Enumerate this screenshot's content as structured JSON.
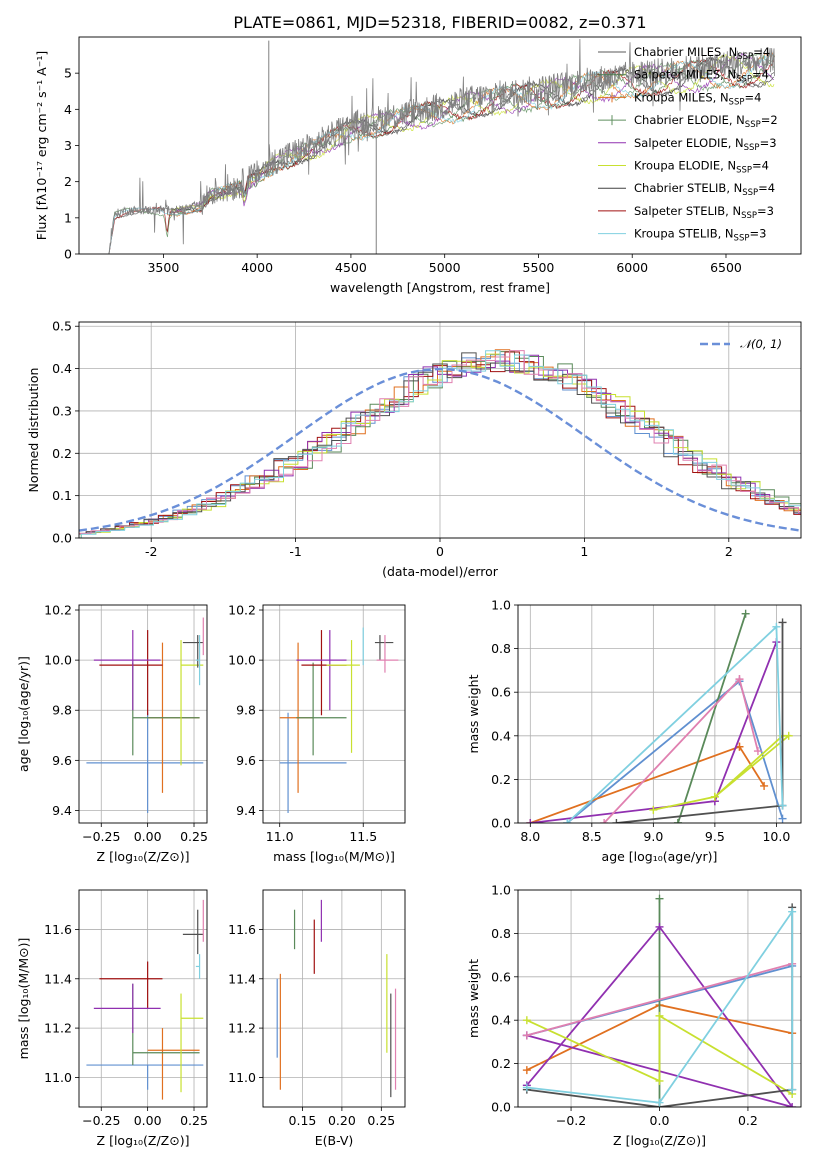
{
  "figure_title": "PLATE=0861, MJD=52318, FIBERID=0082, z=0.371",
  "colors": {
    "series": [
      "#5a5a5a",
      "#4a7a4a",
      "#e07020",
      "#5f8f5f",
      "#9030b0",
      "#c8e030",
      "#404040",
      "#a01010",
      "#80d0e0"
    ],
    "hist": [
      "#6090d0",
      "#e07020",
      "#5a8a5a",
      "#a01010",
      "#9030b0",
      "#c8e030",
      "#505050",
      "#e080b0",
      "#80d0e0"
    ],
    "normal_curve": "#6a8fd8"
  },
  "chart_data": [
    {
      "id": "spectrum",
      "type": "line",
      "xlabel": "wavelength [Angstrom, rest frame]",
      "ylabel": "Flux [fλ10⁻¹⁷ erg cm⁻² s⁻¹ A⁻¹]",
      "xlim": [
        3050,
        6900
      ],
      "ylim": [
        0,
        6.0
      ],
      "xticks": [
        3500,
        4000,
        4500,
        5000,
        5500,
        6000,
        6500
      ],
      "yticks": [
        0,
        1,
        2,
        3,
        4,
        5
      ],
      "continuum_anchors": {
        "x": [
          3210,
          3240,
          3300,
          3500,
          3560,
          3700,
          3750,
          3900,
          4000,
          4100,
          4300,
          4500,
          4800,
          5000,
          5200,
          5500,
          5800,
          6000,
          6300,
          6500,
          6720
        ],
        "y": [
          0,
          1.1,
          1.2,
          1.22,
          1.2,
          1.35,
          1.7,
          1.9,
          2.2,
          2.6,
          3.0,
          3.55,
          3.9,
          4.1,
          4.35,
          4.55,
          4.8,
          4.95,
          5.1,
          5.25,
          5.3
        ]
      },
      "spikes": [
        {
          "x": 4062,
          "y": 5.9
        },
        {
          "x": 4635,
          "y": 0.0
        }
      ],
      "legend_position": "upper-right",
      "legend": [
        {
          "base": "Chabrier MILES, N",
          "sub": "SSP",
          "tail": "=4",
          "marker": "line"
        },
        {
          "base": "Salpeter MILES, N",
          "sub": "SSP",
          "tail": "=4",
          "marker": "line"
        },
        {
          "base": "Kroupa MILES, N",
          "sub": "SSP",
          "tail": "=4",
          "marker": "plus"
        },
        {
          "base": "Chabrier ELODIE, N",
          "sub": "SSP",
          "tail": "=2",
          "marker": "plus"
        },
        {
          "base": "Salpeter ELODIE, N",
          "sub": "SSP",
          "tail": "=3",
          "marker": "line"
        },
        {
          "base": "Kroupa ELODIE, N",
          "sub": "SSP",
          "tail": "=4",
          "marker": "line"
        },
        {
          "base": "Chabrier STELIB, N",
          "sub": "SSP",
          "tail": "=4",
          "marker": "line"
        },
        {
          "base": "Salpeter STELIB, N",
          "sub": "SSP",
          "tail": "=3",
          "marker": "line"
        },
        {
          "base": "Kroupa STELIB, N",
          "sub": "SSP",
          "tail": "=3",
          "marker": "line"
        }
      ]
    },
    {
      "id": "residuals",
      "type": "histogram",
      "xlabel": "(data-model)/error",
      "ylabel": "Normed distribution",
      "xlim": [
        -2.5,
        2.5
      ],
      "ylim": [
        0,
        0.51
      ],
      "xticks": [
        -2,
        -1,
        0,
        1,
        2
      ],
      "yticks": [
        0.0,
        0.1,
        0.2,
        0.3,
        0.4,
        0.5
      ],
      "bin_edges_start": -2.55,
      "bin_width": 0.1,
      "base_values": [
        0.01,
        0.015,
        0.02,
        0.027,
        0.033,
        0.04,
        0.05,
        0.06,
        0.072,
        0.085,
        0.1,
        0.115,
        0.13,
        0.148,
        0.166,
        0.185,
        0.205,
        0.226,
        0.248,
        0.27,
        0.293,
        0.316,
        0.338,
        0.36,
        0.378,
        0.394,
        0.405,
        0.413,
        0.418,
        0.42,
        0.417,
        0.41,
        0.4,
        0.387,
        0.37,
        0.35,
        0.33,
        0.308,
        0.285,
        0.262,
        0.239,
        0.216,
        0.194,
        0.173,
        0.153,
        0.134,
        0.117,
        0.101,
        0.086,
        0.073,
        0.062
      ],
      "legend": {
        "label": "𝒩(0, 1)",
        "position": "upper-right"
      },
      "normal_curve": {
        "mean": 0,
        "sigma": 1
      }
    },
    {
      "id": "age_vs_Z",
      "type": "errorbar",
      "xlabel": "Z [log₁₀(Z/Z⊙)]",
      "ylabel": "age  [log₁₀(age/yr)]",
      "xlim": [
        -0.37,
        0.32
      ],
      "ylim": [
        9.35,
        10.22
      ],
      "xticks": [
        -0.25,
        0.0,
        0.25
      ],
      "xticklabels": [
        "−0.25",
        "0.00",
        "0.25"
      ],
      "yticks": [
        9.4,
        9.6,
        9.8,
        10.0,
        10.2
      ],
      "points": [
        {
          "x": 0.0,
          "xerr": [
            0.33,
            0.3
          ],
          "y": 9.59,
          "yerr": [
            0.2,
            0.2
          ]
        },
        {
          "x": 0.08,
          "xerr": [
            0.08,
            0.2
          ],
          "y": 9.77,
          "yerr": [
            0.3,
            0.3
          ]
        },
        {
          "x": -0.08,
          "xerr": [
            0.0,
            0.36
          ],
          "y": 9.77,
          "yerr": [
            0.15,
            0.22
          ]
        },
        {
          "x": 0.0,
          "xerr": [
            0.26,
            0.08
          ],
          "y": 9.98,
          "yerr": [
            0.2,
            0.14
          ]
        },
        {
          "x": -0.08,
          "xerr": [
            0.21,
            0.15
          ],
          "y": 10.0,
          "yerr": [
            0.2,
            0.12
          ]
        },
        {
          "x": 0.18,
          "xerr": [
            0.0,
            0.12
          ],
          "y": 9.98,
          "yerr": [
            0.4,
            0.1
          ]
        },
        {
          "x": 0.27,
          "xerr": [
            0.08,
            0.03
          ],
          "y": 10.07,
          "yerr": [
            0.1,
            0.03
          ]
        },
        {
          "x": 0.3,
          "xerr": [
            0.0,
            0.0
          ],
          "y": 10.07,
          "yerr": [
            0.05,
            0.1
          ]
        },
        {
          "x": 0.28,
          "xerr": [
            0.02,
            0.0
          ],
          "y": 10.0,
          "yerr": [
            0.1,
            0.1
          ]
        }
      ]
    },
    {
      "id": "age_vs_mass",
      "type": "errorbar",
      "xlabel": "mass [log₁₀(M/M⊙)]",
      "ylabel": "",
      "xlim": [
        10.9,
        11.75
      ],
      "ylim": [
        9.35,
        10.22
      ],
      "xticks": [
        11.0,
        11.5
      ],
      "yticks": [
        9.4,
        9.6,
        9.8,
        10.0,
        10.2
      ],
      "points": [
        {
          "x": 11.05,
          "xerr": [
            0.05,
            0.35
          ],
          "y": 9.59,
          "yerr": [
            0.2,
            0.2
          ]
        },
        {
          "x": 11.11,
          "xerr": [
            0.11,
            0.09
          ],
          "y": 9.77,
          "yerr": [
            0.3,
            0.3
          ]
        },
        {
          "x": 11.2,
          "xerr": [
            0.1,
            0.2
          ],
          "y": 9.77,
          "yerr": [
            0.15,
            0.22
          ]
        },
        {
          "x": 11.25,
          "xerr": [
            0.12,
            0.15
          ],
          "y": 9.98,
          "yerr": [
            0.2,
            0.14
          ]
        },
        {
          "x": 11.3,
          "xerr": [
            0.2,
            0.1
          ],
          "y": 10.0,
          "yerr": [
            0.2,
            0.12
          ]
        },
        {
          "x": 11.43,
          "xerr": [
            0.15,
            0.05
          ],
          "y": 9.98,
          "yerr": [
            0.35,
            0.1
          ]
        },
        {
          "x": 11.6,
          "xerr": [
            0.03,
            0.08
          ],
          "y": 10.07,
          "yerr": [
            0.07,
            0.03
          ]
        },
        {
          "x": 11.63,
          "xerr": [
            0.05,
            0.08
          ],
          "y": 10.0,
          "yerr": [
            0.05,
            0.1
          ]
        },
        {
          "x": 11.5,
          "xerr": [
            0.0,
            0.0
          ],
          "y": 10.0,
          "yerr": [
            0.02,
            0.13
          ]
        }
      ]
    },
    {
      "id": "weight_vs_age",
      "type": "line",
      "xlabel": "age  [log₁₀(age/yr)]",
      "ylabel": "mass weight",
      "xlim": [
        7.9,
        10.2
      ],
      "ylim": [
        0,
        1.0
      ],
      "xticks": [
        8.0,
        8.5,
        9.0,
        9.5,
        10.0
      ],
      "yticks": [
        0.0,
        0.2,
        0.4,
        0.6,
        0.8,
        1.0
      ],
      "series": [
        {
          "x": [
            8.3,
            9.7,
            10.05,
            9.7
          ],
          "y": [
            0.0,
            0.65,
            0.02,
            0.65
          ]
        },
        {
          "x": [
            8.0,
            9.7,
            9.9,
            9.7
          ],
          "y": [
            0.0,
            0.35,
            0.17,
            0.35
          ]
        },
        {
          "x": [
            9.2,
            9.75,
            9.2
          ],
          "y": [
            0.0,
            0.96,
            0.0
          ]
        },
        {
          "x": [
            8.0,
            9.5,
            10.0,
            9.5
          ],
          "y": [
            0.0,
            0.1,
            0.83,
            0.1
          ]
        },
        {
          "x": [
            9.0,
            9.5,
            10.05,
            10.1,
            9.5
          ],
          "y": [
            0.06,
            0.12,
            0.4,
            0.4,
            0.12
          ]
        },
        {
          "x": [
            8.7,
            10.05,
            10.05
          ],
          "y": [
            0.0,
            0.08,
            0.92
          ]
        },
        {
          "x": [
            8.6,
            9.7,
            9.85,
            9.7
          ],
          "y": [
            0.0,
            0.66,
            0.33,
            0.66
          ]
        },
        {
          "x": [
            8.3,
            10.0,
            10.05
          ],
          "y": [
            0.0,
            0.9,
            0.08
          ]
        }
      ]
    },
    {
      "id": "mass_vs_Z",
      "type": "errorbar",
      "xlabel": "Z [log₁₀(Z/Z⊙)]",
      "ylabel": "mass [log₁₀(M/M⊙)]",
      "xlim": [
        -0.37,
        0.32
      ],
      "ylim": [
        10.88,
        11.76
      ],
      "xticks": [
        -0.25,
        0.0,
        0.25
      ],
      "xticklabels": [
        "−0.25",
        "0.00",
        "0.25"
      ],
      "yticks": [
        11.0,
        11.2,
        11.4,
        11.6
      ],
      "points": [
        {
          "x": 0.0,
          "xerr": [
            0.33,
            0.3
          ],
          "y": 11.05,
          "yerr": [
            0.1,
            0.0
          ]
        },
        {
          "x": 0.08,
          "xerr": [
            0.08,
            0.2
          ],
          "y": 11.11,
          "yerr": [
            0.2,
            0.09
          ]
        },
        {
          "x": -0.08,
          "xerr": [
            0.0,
            0.36
          ],
          "y": 11.1,
          "yerr": [
            0.05,
            0.28
          ]
        },
        {
          "x": 0.0,
          "xerr": [
            0.26,
            0.08
          ],
          "y": 11.4,
          "yerr": [
            0.12,
            0.07
          ]
        },
        {
          "x": -0.08,
          "xerr": [
            0.21,
            0.15
          ],
          "y": 11.28,
          "yerr": [
            0.1,
            0.1
          ]
        },
        {
          "x": 0.18,
          "xerr": [
            0.0,
            0.12
          ],
          "y": 11.24,
          "yerr": [
            0.3,
            0.1
          ]
        },
        {
          "x": 0.27,
          "xerr": [
            0.08,
            0.03
          ],
          "y": 11.58,
          "yerr": [
            0.08,
            0.1
          ]
        },
        {
          "x": 0.3,
          "xerr": [
            0.0,
            0.0
          ],
          "y": 11.58,
          "yerr": [
            0.03,
            0.14
          ]
        },
        {
          "x": 0.28,
          "xerr": [
            0.02,
            0.0
          ],
          "y": 11.45,
          "yerr": [
            0.05,
            0.05
          ]
        }
      ]
    },
    {
      "id": "mass_vs_EBV",
      "type": "errorbar",
      "xlabel": "E(B-V)",
      "ylabel": "",
      "xlim": [
        0.1,
        0.28
      ],
      "ylim": [
        10.88,
        11.76
      ],
      "xticks": [
        0.15,
        0.2,
        0.25
      ],
      "yticks": [
        11.0,
        11.2,
        11.4,
        11.6
      ],
      "points": [
        {
          "x": 0.118,
          "yerr": [
            11.08,
            11.4
          ]
        },
        {
          "x": 0.122,
          "yerr": [
            10.95,
            11.42
          ]
        },
        {
          "x": 0.14,
          "yerr": [
            11.52,
            11.68
          ]
        },
        {
          "x": 0.165,
          "yerr": [
            11.42,
            11.64
          ]
        },
        {
          "x": 0.174,
          "yerr": [
            11.55,
            11.72
          ]
        },
        {
          "x": 0.257,
          "yerr": [
            11.1,
            11.5
          ]
        },
        {
          "x": 0.262,
          "yerr": [
            10.92,
            11.34
          ]
        },
        {
          "x": 0.268,
          "yerr": [
            10.95,
            11.36
          ]
        }
      ]
    },
    {
      "id": "weight_vs_Z",
      "type": "line",
      "xlabel": "Z [log₁₀(Z/Z⊙)]",
      "ylabel": "mass weight",
      "xlim": [
        -0.32,
        0.32
      ],
      "ylim": [
        0,
        1.0
      ],
      "xticks": [
        -0.2,
        0.0,
        0.2
      ],
      "xticklabels": [
        "−0.2",
        "0.0",
        "0.2"
      ],
      "yticks": [
        0.0,
        0.2,
        0.4,
        0.6,
        0.8,
        1.0
      ],
      "series": [
        {
          "x": [
            -0.3,
            0.3
          ],
          "y": [
            0.33,
            0.65
          ]
        },
        {
          "x": [
            -0.3,
            0.0,
            0.3
          ],
          "y": [
            0.17,
            0.47,
            0.34
          ]
        },
        {
          "x": [
            0.0,
            0.0
          ],
          "y": [
            0.0,
            0.96
          ]
        },
        {
          "x": [
            -0.3,
            0.0,
            0.3,
            -0.3
          ],
          "y": [
            0.1,
            0.83,
            0.0,
            0.33
          ]
        },
        {
          "x": [
            -0.3,
            0.0,
            0.0,
            0.3
          ],
          "y": [
            0.4,
            0.12,
            0.42,
            0.06
          ]
        },
        {
          "x": [
            -0.3,
            0.0,
            0.3,
            0.3
          ],
          "y": [
            0.08,
            0.0,
            0.08,
            0.92
          ]
        },
        {
          "x": [
            -0.3,
            0.3
          ],
          "y": [
            0.33,
            0.66
          ]
        },
        {
          "x": [
            -0.3,
            0.0,
            0.3,
            0.3
          ],
          "y": [
            0.09,
            0.02,
            0.9,
            0.08
          ]
        }
      ]
    }
  ]
}
